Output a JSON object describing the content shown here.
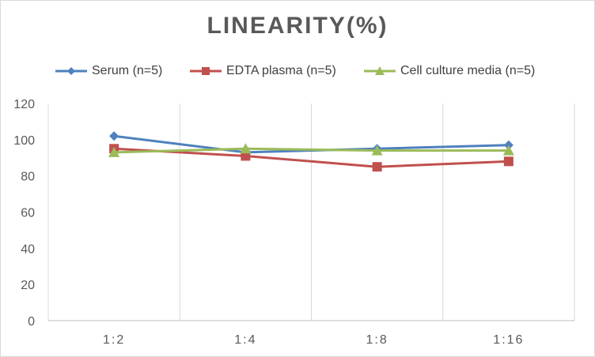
{
  "chart_data": {
    "type": "line",
    "title": "LINEARITY(%)",
    "xlabel": "",
    "ylabel": "",
    "categories": [
      "1:2",
      "1:4",
      "1:8",
      "1:16"
    ],
    "ylim": [
      0,
      120
    ],
    "yticks": [
      0,
      20,
      40,
      60,
      80,
      100,
      120
    ],
    "grid": "vertical",
    "legend_position": "top",
    "series": [
      {
        "name": "Serum (n=5)",
        "marker": "diamond",
        "color": "#4e81bd",
        "values": [
          102,
          93,
          95,
          97
        ]
      },
      {
        "name": "EDTA plasma (n=5)",
        "marker": "square",
        "color": "#c0504d",
        "values": [
          95,
          91,
          85,
          88
        ]
      },
      {
        "name": "Cell culture media (n=5)",
        "marker": "triangle",
        "color": "#9bbb59",
        "values": [
          93,
          95,
          94,
          94
        ]
      }
    ]
  }
}
